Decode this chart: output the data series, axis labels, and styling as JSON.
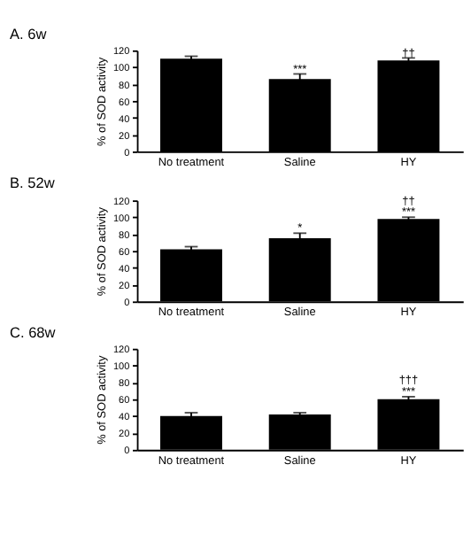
{
  "chart_data": [
    {
      "type": "bar",
      "title": "A. 6w",
      "ylabel": "% of SOD activity",
      "categories": [
        "No treatment",
        "Saline",
        "HY"
      ],
      "values": [
        110,
        86,
        108
      ],
      "errors": [
        3,
        6,
        3
      ],
      "color": "#000000",
      "ylim": [
        0,
        120
      ],
      "yticks": [
        0,
        20,
        40,
        60,
        80,
        100,
        120
      ],
      "grid": false,
      "annotations": [
        {
          "text": "***",
          "x": "Saline",
          "y": 92
        },
        {
          "text": "††",
          "x": "HY",
          "y": 111
        }
      ]
    },
    {
      "type": "bar",
      "title": "B. 52w",
      "ylabel": "% of SOD activity",
      "categories": [
        "No treatment",
        "Saline",
        "HY"
      ],
      "values": [
        62,
        75,
        98
      ],
      "errors": [
        3,
        6,
        2
      ],
      "color": "#000000",
      "ylim": [
        0,
        120
      ],
      "yticks": [
        0,
        20,
        40,
        60,
        80,
        100,
        120
      ],
      "grid": false,
      "annotations": [
        {
          "text": "*",
          "x": "Saline",
          "y": 81
        },
        {
          "text": "***",
          "x": "HY",
          "y": 100
        },
        {
          "text": "††",
          "x": "HY",
          "y": 100
        }
      ]
    },
    {
      "type": "bar",
      "title": "C. 68w",
      "ylabel": "% of SOD activity",
      "categories": [
        "No treatment",
        "Saline",
        "HY"
      ],
      "values": [
        40,
        42,
        60
      ],
      "errors": [
        4,
        2,
        3
      ],
      "color": "#000000",
      "ylim": [
        0,
        120
      ],
      "yticks": [
        0,
        20,
        40,
        60,
        80,
        100,
        120
      ],
      "grid": false,
      "annotations": [
        {
          "text": "***",
          "x": "HY",
          "y": 63
        },
        {
          "text": "†††",
          "x": "HY",
          "y": 63
        }
      ]
    }
  ]
}
